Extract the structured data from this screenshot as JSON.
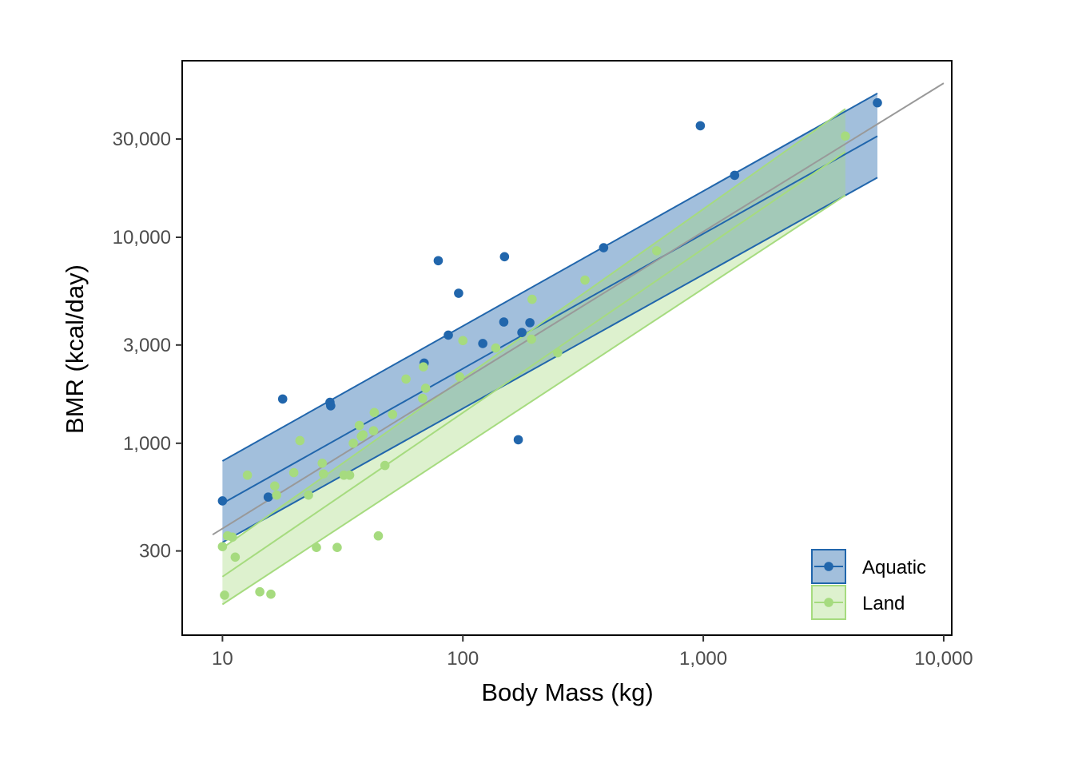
{
  "chart_data": {
    "type": "scatter",
    "xlabel": "Body Mass (kg)",
    "ylabel": "BMR (kcal/day)",
    "x_scale": "log10",
    "y_scale": "log10",
    "xlim": [
      6.8,
      10800
    ],
    "ylim": [
      117,
      72000
    ],
    "x_ticks": [
      10,
      100,
      1000,
      10000
    ],
    "x_tick_labels": [
      "10",
      "100",
      "1,000",
      "10,000"
    ],
    "y_ticks": [
      300,
      1000,
      3000,
      10000,
      30000
    ],
    "y_tick_labels": [
      "300",
      "1,000",
      "3,000",
      "10,000",
      "30,000"
    ],
    "grid": false,
    "legend_position": "bottom-right",
    "overall_fit": {
      "x": [
        9.1,
        10000
      ],
      "y": [
        360,
        56000
      ],
      "color": "#999999"
    },
    "series": [
      {
        "name": "Aquatic",
        "color": "#2166ac",
        "points": [
          [
            10,
            525
          ],
          [
            15.5,
            548
          ],
          [
            17.8,
            1640
          ],
          [
            28,
            1580
          ],
          [
            28.2,
            1520
          ],
          [
            69,
            2450
          ],
          [
            79,
            7700
          ],
          [
            87,
            3350
          ],
          [
            96,
            5350
          ],
          [
            121,
            3050
          ],
          [
            148,
            3880
          ],
          [
            149,
            8050
          ],
          [
            170,
            1040
          ],
          [
            176,
            3450
          ],
          [
            190,
            3850
          ],
          [
            385,
            8900
          ],
          [
            972,
            34800
          ],
          [
            1350,
            20000
          ],
          [
            5300,
            45000
          ]
        ],
        "fit": {
          "x": [
            10,
            5300
          ],
          "y": [
            510,
            31000
          ],
          "lower": [
            330,
            19500
          ],
          "upper": [
            820,
            50000
          ]
        }
      },
      {
        "name": "Land",
        "color": "#a6db7f",
        "points": [
          [
            10,
            315
          ],
          [
            10.2,
            183
          ],
          [
            10.5,
            355
          ],
          [
            11,
            350
          ],
          [
            11.3,
            280
          ],
          [
            12.7,
            700
          ],
          [
            14.3,
            190
          ],
          [
            15.9,
            185
          ],
          [
            16.5,
            620
          ],
          [
            16.8,
            560
          ],
          [
            19.8,
            720
          ],
          [
            21,
            1030
          ],
          [
            22.8,
            560
          ],
          [
            24.6,
            312
          ],
          [
            26,
            800
          ],
          [
            26.3,
            710
          ],
          [
            30,
            312
          ],
          [
            32,
            700
          ],
          [
            33.8,
            700
          ],
          [
            35,
            1000
          ],
          [
            37.1,
            1220
          ],
          [
            37.8,
            1080
          ],
          [
            38.4,
            1100
          ],
          [
            42.5,
            1150
          ],
          [
            42.8,
            1410
          ],
          [
            44.5,
            355
          ],
          [
            47.4,
            780
          ],
          [
            51,
            1380
          ],
          [
            58,
            2050
          ],
          [
            68,
            1650
          ],
          [
            68.5,
            2350
          ],
          [
            70,
            1850
          ],
          [
            97,
            2100
          ],
          [
            100,
            3150
          ],
          [
            137,
            2900
          ],
          [
            193,
            3200
          ],
          [
            194,
            5000
          ],
          [
            248,
            2750
          ],
          [
            322,
            6200
          ],
          [
            640,
            8600
          ],
          [
            3900,
            31000
          ]
        ],
        "fit": {
          "x": [
            10,
            3900
          ],
          "y": [
            225,
            26000
          ],
          "lower": [
            165,
            16000
          ],
          "upper": [
            310,
            42000
          ]
        }
      }
    ]
  }
}
